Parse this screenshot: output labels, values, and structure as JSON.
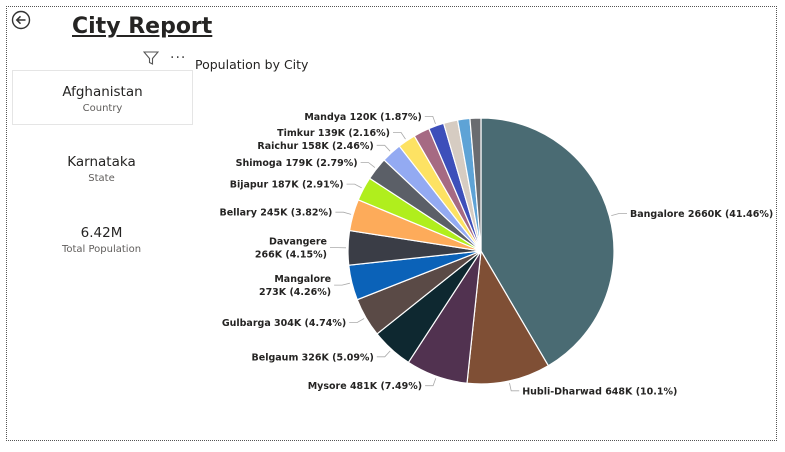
{
  "report": {
    "title": "City Report"
  },
  "cards": [
    {
      "value": "Afghanistan",
      "label": "Country"
    },
    {
      "value": "Karnataka",
      "label": "State"
    },
    {
      "value": "6.42M",
      "label": "Total Population"
    }
  ],
  "icons": {
    "back": "back-arrow-icon",
    "filter": "filter-icon",
    "more": "more-options-icon"
  },
  "chart_data": {
    "type": "pie",
    "title": "Population by City",
    "slices": [
      {
        "name": "Bangalore",
        "value": 2660,
        "label": "Bangalore 2660K (41.46%)",
        "color": "#4a6b73"
      },
      {
        "name": "Hubli-Dharwad",
        "value": 648,
        "label": "Hubli-Dharwad 648K (10.1%)",
        "color": "#7f4f35"
      },
      {
        "name": "Mysore",
        "value": 481,
        "label": "Mysore 481K (7.49%)",
        "color": "#513250"
      },
      {
        "name": "Belgaum",
        "value": 326,
        "label": "Belgaum 326K (5.09%)",
        "color": "#0e2830"
      },
      {
        "name": "Gulbarga",
        "value": 304,
        "label": "Gulbarga 304K (4.74%)",
        "color": "#5a4a46"
      },
      {
        "name": "Mangalore",
        "value": 273,
        "label": "Mangalore\n273K (4.26%)",
        "color": "#0b62b8"
      },
      {
        "name": "Davangere",
        "value": 266,
        "label": "Davangere\n266K (4.15%)",
        "color": "#3a3d46"
      },
      {
        "name": "Bellary",
        "value": 245,
        "label": "Bellary 245K (3.82%)",
        "color": "#fdab5a"
      },
      {
        "name": "Bijapur",
        "value": 187,
        "label": "Bijapur 187K (2.91%)",
        "color": "#b0ee1d"
      },
      {
        "name": "Shimoga",
        "value": 179,
        "label": "Shimoga 179K (2.79%)",
        "color": "#5b5f67"
      },
      {
        "name": "Raichur",
        "value": 158,
        "label": "Raichur 158K (2.46%)",
        "color": "#93aaf2"
      },
      {
        "name": "Timkur",
        "value": 139,
        "label": "Timkur 139K (2.16%)",
        "color": "#fde263"
      },
      {
        "name": "",
        "value": 125,
        "label": "",
        "color": "#a66a83"
      },
      {
        "name": "Mandya",
        "value": 120,
        "label": "Mandya 120K (1.87%)",
        "color": "#3d4fba"
      },
      {
        "name": "",
        "value": 110,
        "label": "",
        "color": "#d6ccc2"
      },
      {
        "name": "",
        "value": 95,
        "label": "",
        "color": "#5ea3d6"
      },
      {
        "name": "",
        "value": 85,
        "label": "",
        "color": "#6a6c70"
      }
    ]
  }
}
